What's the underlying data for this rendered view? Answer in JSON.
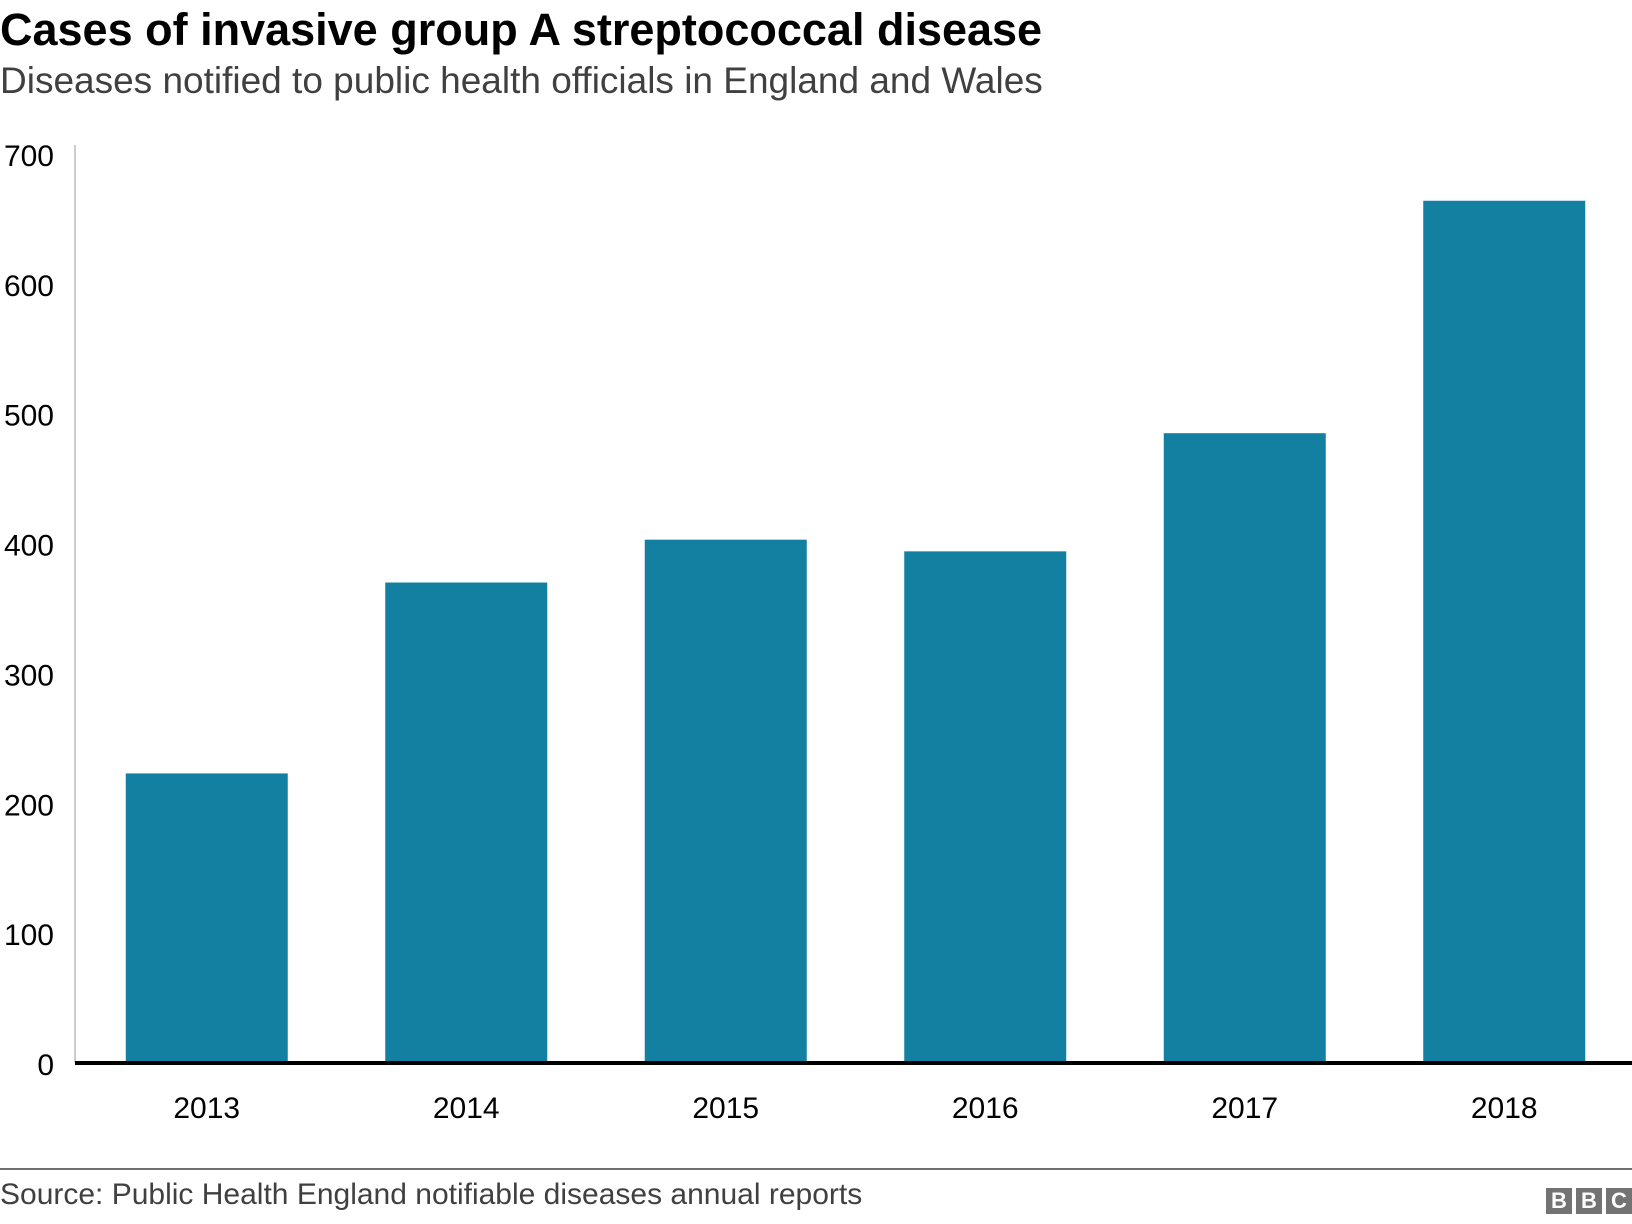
{
  "chart_data": {
    "type": "bar",
    "title": "Cases of invasive group A streptococcal disease",
    "subtitle": "Diseases notified to public health officials in England and Wales",
    "categories": [
      "2013",
      "2014",
      "2015",
      "2016",
      "2017",
      "2018"
    ],
    "values": [
      223,
      370,
      403,
      394,
      485,
      664
    ],
    "xlabel": "",
    "ylabel": "",
    "ylim": [
      0,
      700
    ],
    "yticks": [
      0,
      100,
      200,
      300,
      400,
      500,
      600,
      700
    ],
    "grid": false,
    "legend": "none",
    "bar_color": "#1380a1",
    "source": "Source: Public Health England notifiable diseases annual reports"
  },
  "branding": {
    "logo_letters": [
      "B",
      "B",
      "C"
    ]
  }
}
